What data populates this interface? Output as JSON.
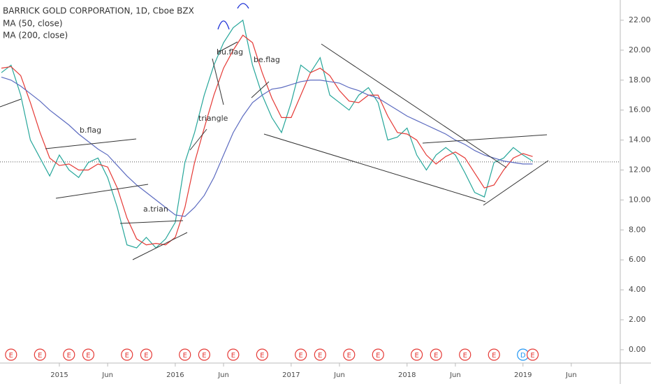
{
  "chart_data": {
    "type": "line",
    "title": "BARRICK GOLD CORPORATION, 1D, Cboe BZX",
    "x": [
      "2014-07",
      "2014-08",
      "2014-09",
      "2014-10",
      "2014-11",
      "2014-12",
      "2015-01",
      "2015-02",
      "2015-03",
      "2015-04",
      "2015-05",
      "2015-06",
      "2015-07",
      "2015-08",
      "2015-09",
      "2015-10",
      "2015-11",
      "2015-12",
      "2016-01",
      "2016-02",
      "2016-03",
      "2016-04",
      "2016-05",
      "2016-06",
      "2016-07",
      "2016-08",
      "2016-09",
      "2016-10",
      "2016-11",
      "2016-12",
      "2017-01",
      "2017-02",
      "2017-03",
      "2017-04",
      "2017-05",
      "2017-06",
      "2017-07",
      "2017-08",
      "2017-09",
      "2017-10",
      "2017-11",
      "2017-12",
      "2018-01",
      "2018-02",
      "2018-03",
      "2018-04",
      "2018-05",
      "2018-06",
      "2018-07",
      "2018-08",
      "2018-09",
      "2018-10",
      "2018-11",
      "2018-12",
      "2019-01",
      "2019-02"
    ],
    "series": [
      {
        "color": "#26a69a",
        "values": [
          18.5,
          19.0,
          17.0,
          14.0,
          12.8,
          11.6,
          13.0,
          12.0,
          11.5,
          12.5,
          12.8,
          11.5,
          9.5,
          7.0,
          6.8,
          7.5,
          6.8,
          7.4,
          8.5,
          12.5,
          14.5,
          17.0,
          19.0,
          20.5,
          21.5,
          22.0,
          19.0,
          17.0,
          15.5,
          14.5,
          16.5,
          19.0,
          18.5,
          19.5,
          17.0,
          16.5,
          16.0,
          17.0,
          17.5,
          16.5,
          14.0,
          14.2,
          14.8,
          13.0,
          12.0,
          13.0,
          13.5,
          13.0,
          11.8,
          10.5,
          10.2,
          12.5,
          12.8,
          13.5,
          13.0,
          12.6
        ]
      },
      {
        "name": "MA (50, close)",
        "color": "#e53935",
        "values": [
          18.8,
          18.9,
          18.3,
          16.5,
          14.5,
          12.8,
          12.3,
          12.4,
          12.0,
          12.0,
          12.4,
          12.2,
          10.8,
          8.8,
          7.4,
          7.0,
          7.1,
          7.0,
          7.5,
          9.5,
          12.5,
          14.8,
          17.0,
          18.8,
          20.0,
          21.0,
          20.5,
          18.5,
          16.8,
          15.5,
          15.5,
          17.0,
          18.5,
          18.8,
          18.3,
          17.3,
          16.6,
          16.5,
          17.0,
          17.0,
          15.6,
          14.5,
          14.4,
          14.0,
          13.0,
          12.4,
          12.9,
          13.2,
          12.8,
          11.8,
          10.8,
          11.0,
          12.0,
          12.8,
          13.1,
          12.9
        ]
      },
      {
        "name": "MA (200, close)",
        "color": "#5c6bc0",
        "values": [
          18.2,
          18.0,
          17.6,
          17.1,
          16.6,
          16.0,
          15.5,
          15.0,
          14.4,
          13.9,
          13.4,
          13.0,
          12.3,
          11.6,
          11.0,
          10.5,
          10.0,
          9.5,
          9.0,
          8.9,
          9.5,
          10.3,
          11.5,
          13.0,
          14.5,
          15.6,
          16.5,
          17.0,
          17.4,
          17.5,
          17.7,
          17.9,
          18.0,
          18.0,
          17.9,
          17.8,
          17.5,
          17.3,
          17.0,
          16.8,
          16.4,
          16.0,
          15.6,
          15.3,
          15.0,
          14.7,
          14.4,
          14.0,
          13.7,
          13.3,
          13.0,
          12.8,
          12.6,
          12.5,
          12.4,
          12.4
        ]
      }
    ],
    "last_price": 12.54,
    "xlim": [
      "2014-07",
      "2019-11"
    ],
    "xticks": [
      {
        "value": "2015-01",
        "label": "2015"
      },
      {
        "value": "2015-06",
        "label": "Jun"
      },
      {
        "value": "2016-01",
        "label": "2016"
      },
      {
        "value": "2016-06",
        "label": "Jun"
      },
      {
        "value": "2017-01",
        "label": "2017"
      },
      {
        "value": "2017-06",
        "label": "Jun"
      },
      {
        "value": "2018-01",
        "label": "2018"
      },
      {
        "value": "2018-06",
        "label": "Jun"
      },
      {
        "value": "2019-01",
        "label": "2019"
      },
      {
        "value": "2019-06",
        "label": "Jun"
      }
    ],
    "ylim": [
      -0.89,
      23.35
    ],
    "yticks": [
      {
        "value": 0,
        "label": "0.00"
      },
      {
        "value": 2,
        "label": "2.00"
      },
      {
        "value": 4,
        "label": "4.00"
      },
      {
        "value": 6,
        "label": "6.00"
      },
      {
        "value": 8,
        "label": "8.00"
      },
      {
        "value": 10,
        "label": "10.00"
      },
      {
        "value": 12,
        "label": "12.00"
      },
      {
        "value": 14,
        "label": "14.00"
      },
      {
        "value": 16,
        "label": "16.00"
      },
      {
        "value": 18,
        "label": "18.00"
      },
      {
        "value": 20,
        "label": "20.00"
      },
      {
        "value": 22,
        "label": "22.00"
      }
    ],
    "annotations": [
      "b.flag",
      "a.trian",
      "triangle",
      "bu.flag",
      "be.flag"
    ],
    "events": [
      {
        "label": "E",
        "x": "2014-08"
      },
      {
        "label": "E",
        "x": "2014-11"
      },
      {
        "label": "E",
        "x": "2015-02"
      },
      {
        "label": "E",
        "x": "2015-04"
      },
      {
        "label": "E",
        "x": "2015-08"
      },
      {
        "label": "E",
        "x": "2015-10"
      },
      {
        "label": "E",
        "x": "2016-02"
      },
      {
        "label": "E",
        "x": "2016-04"
      },
      {
        "label": "E",
        "x": "2016-07"
      },
      {
        "label": "E",
        "x": "2016-10"
      },
      {
        "label": "E",
        "x": "2017-02"
      },
      {
        "label": "E",
        "x": "2017-04"
      },
      {
        "label": "E",
        "x": "2017-07"
      },
      {
        "label": "E",
        "x": "2017-10"
      },
      {
        "label": "E",
        "x": "2018-02"
      },
      {
        "label": "E",
        "x": "2018-04"
      },
      {
        "label": "E",
        "x": "2018-07"
      },
      {
        "label": "E",
        "x": "2018-10"
      },
      {
        "label": "D",
        "x": "2019-01"
      },
      {
        "label": "E",
        "x": "2019-02"
      }
    ],
    "event_colors": {
      "E": "#e53935",
      "D": "#2196f3"
    }
  }
}
